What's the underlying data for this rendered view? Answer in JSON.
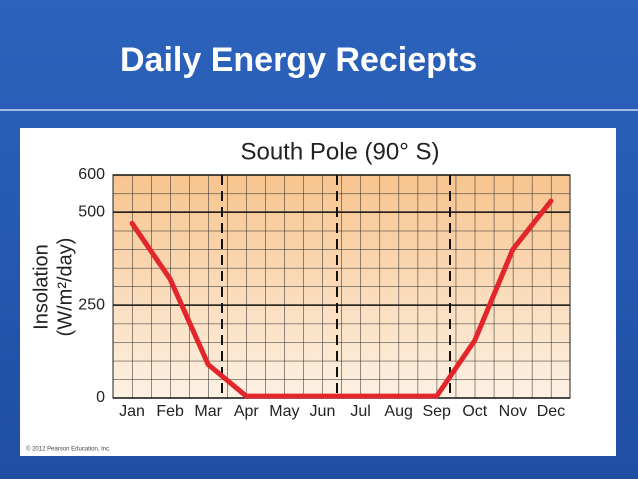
{
  "slide": {
    "title": "Daily Energy Reciepts",
    "credit": "© 2012 Pearson Education, Inc."
  },
  "chart_data": {
    "type": "line",
    "title": "South Pole (90° S)",
    "y_label": [
      "Insolation",
      "(W/m²/day)"
    ],
    "categories": [
      "Jan",
      "Feb",
      "Mar",
      "Apr",
      "May",
      "Jun",
      "Jul",
      "Aug",
      "Sep",
      "Oct",
      "Nov",
      "Dec"
    ],
    "series": [
      {
        "color": "#e3262b",
        "values": [
          470,
          320,
          90,
          5,
          5,
          5,
          5,
          5,
          5,
          155,
          400,
          530
        ]
      }
    ],
    "ylim": [
      0,
      600
    ],
    "yticks": [
      0,
      250,
      500,
      600
    ],
    "grid": true
  }
}
